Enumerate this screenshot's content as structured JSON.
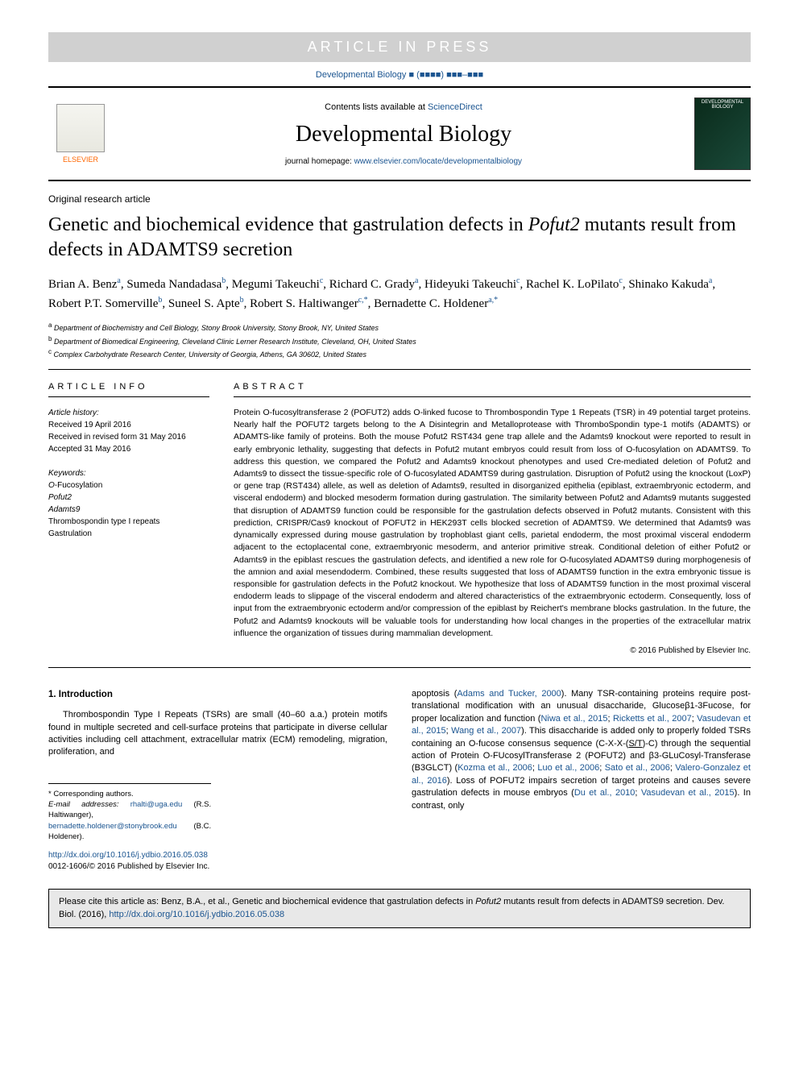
{
  "banner": "ARTICLE IN PRESS",
  "citation_top": {
    "journal": "Developmental Biology",
    "placeholder": "■ (■■■■) ■■■–■■■"
  },
  "header": {
    "contents_prefix": "Contents lists available at ",
    "contents_link": "ScienceDirect",
    "journal_name": "Developmental Biology",
    "homepage_prefix": "journal homepage: ",
    "homepage_url": "www.elsevier.com/locate/developmentalbiology",
    "elsevier_label": "ELSEVIER",
    "cover_label": "DEVELOPMENTAL BIOLOGY"
  },
  "article_type": "Original research article",
  "title_parts": [
    "Genetic and biochemical evidence that gastrulation defects in ",
    "Pofut2",
    " mutants result from defects in ADAMTS9 secretion"
  ],
  "authors": [
    {
      "name": "Brian A. Benz",
      "aff": "a"
    },
    {
      "name": "Sumeda Nandadasa",
      "aff": "b"
    },
    {
      "name": "Megumi Takeuchi",
      "aff": "c"
    },
    {
      "name": "Richard C. Grady",
      "aff": "a"
    },
    {
      "name": "Hideyuki Takeuchi",
      "aff": "c"
    },
    {
      "name": "Rachel K. LoPilato",
      "aff": "c"
    },
    {
      "name": "Shinako Kakuda",
      "aff": "a"
    },
    {
      "name": "Robert P.T. Somerville",
      "aff": "b"
    },
    {
      "name": "Suneel S. Apte",
      "aff": "b"
    },
    {
      "name": "Robert S. Haltiwanger",
      "aff": "c,*"
    },
    {
      "name": "Bernadette C. Holdener",
      "aff": "a,*"
    }
  ],
  "affiliations": [
    {
      "sup": "a",
      "text": "Department of Biochemistry and Cell Biology, Stony Brook University, Stony Brook, NY, United States"
    },
    {
      "sup": "b",
      "text": "Department of Biomedical Engineering, Cleveland Clinic Lerner Research Institute, Cleveland, OH, United States"
    },
    {
      "sup": "c",
      "text": "Complex Carbohydrate Research Center, University of Georgia, Athens, GA 30602, United States"
    }
  ],
  "article_info_heading": "ARTICLE INFO",
  "history": {
    "label": "Article history:",
    "received": "Received 19 April 2016",
    "revised": "Received in revised form 31 May 2016",
    "accepted": "Accepted 31 May 2016"
  },
  "keywords": {
    "label": "Keywords:",
    "items": [
      "O-Fucosylation",
      "Pofut2",
      "Adamts9",
      "Thrombospondin type I repeats",
      "Gastrulation"
    ]
  },
  "abstract_heading": "ABSTRACT",
  "abstract": "Protein O-fucosyltransferase 2 (POFUT2) adds O-linked fucose to Thrombospondin Type 1 Repeats (TSR) in 49 potential target proteins. Nearly half the POFUT2 targets belong to the A Disintegrin and Metalloprotease with ThromboSpondin type-1 motifs (ADAMTS) or ADAMTS-like family of proteins. Both the mouse Pofut2 RST434 gene trap allele and the Adamts9 knockout were reported to result in early embryonic lethality, suggesting that defects in Pofut2 mutant embryos could result from loss of O-fucosylation on ADAMTS9. To address this question, we compared the Pofut2 and Adamts9 knockout phenotypes and used Cre-mediated deletion of Pofut2 and Adamts9 to dissect the tissue-specific role of O-fucosylated ADAMTS9 during gastrulation. Disruption of Pofut2 using the knockout (LoxP) or gene trap (RST434) allele, as well as deletion of Adamts9, resulted in disorganized epithelia (epiblast, extraembryonic ectoderm, and visceral endoderm) and blocked mesoderm formation during gastrulation. The similarity between Pofut2 and Adamts9 mutants suggested that disruption of ADAMTS9 function could be responsible for the gastrulation defects observed in Pofut2 mutants. Consistent with this prediction, CRISPR/Cas9 knockout of POFUT2 in HEK293T cells blocked secretion of ADAMTS9. We determined that Adamts9 was dynamically expressed during mouse gastrulation by trophoblast giant cells, parietal endoderm, the most proximal visceral endoderm adjacent to the ectoplacental cone, extraembryonic mesoderm, and anterior primitive streak. Conditional deletion of either Pofut2 or Adamts9 in the epiblast rescues the gastrulation defects, and identified a new role for O-fucosylated ADAMTS9 during morphogenesis of the amnion and axial mesendoderm. Combined, these results suggested that loss of ADAMTS9 function in the extra embryonic tissue is responsible for gastrulation defects in the Pofut2 knockout. We hypothesize that loss of ADAMTS9 function in the most proximal visceral endoderm leads to slippage of the visceral endoderm and altered characteristics of the extraembryonic ectoderm. Consequently, loss of input from the extraembryonic ectoderm and/or compression of the epiblast by Reichert's membrane blocks gastrulation. In the future, the Pofut2 and Adamts9 knockouts will be valuable tools for understanding how local changes in the properties of the extracellular matrix influence the organization of tissues during mammalian development.",
  "copyright": "© 2016 Published by Elsevier Inc.",
  "intro": {
    "heading": "1.  Introduction",
    "col1": "Thrombospondin Type I Repeats (TSRs) are small (40–60 a.a.) protein motifs found in multiple secreted and cell-surface proteins that participate in diverse cellular activities including cell attachment, extracellular matrix (ECM) remodeling, migration, proliferation, and",
    "col2_a": "apoptosis (",
    "col2_a_link": "Adams and Tucker, 2000",
    "col2_b": "). Many TSR-containing proteins require post-translational modification with an unusual disaccharide, Glucoseβ1-3Fucose, for proper localization and function (",
    "col2_b_links": [
      "Niwa et al., 2015",
      "Ricketts et al., 2007",
      "Vasudevan et al., 2015",
      "Wang et al., 2007"
    ],
    "col2_c": "). This disaccharide is added only to properly folded TSRs containing an O-fucose consensus sequence (C-X-X-(",
    "col2_c_under": "S/T",
    "col2_d": ")-C) through the sequential action of Protein O-FUcosylTransferase 2 (POFUT2) and β3-GLuCosyl-Transferase (B3GLCT) (",
    "col2_d_links": [
      "Kozma et al., 2006",
      "Luo et al., 2006",
      "Sato et al., 2006",
      "Valero-Gonzalez et al., 2016"
    ],
    "col2_e": "). Loss of POFUT2 impairs secretion of target proteins and causes severe gastrulation defects in mouse embryos (",
    "col2_e_links": [
      "Du et al., 2010",
      "Vasudevan et al., 2015"
    ],
    "col2_f": "). In contrast, only"
  },
  "footnotes": {
    "corr": "* Corresponding authors.",
    "email_label": "E-mail addresses:",
    "emails": [
      {
        "addr": "rhalti@uga.edu",
        "who": "(R.S. Haltiwanger)"
      },
      {
        "addr": "bernadette.holdener@stonybrook.edu",
        "who": "(B.C. Holdener)."
      }
    ]
  },
  "doi": {
    "url": "http://dx.doi.org/10.1016/j.ydbio.2016.05.038",
    "issn": "0012-1606/© 2016 Published by Elsevier Inc."
  },
  "cite_box": {
    "prefix": "Please cite this article as: Benz, B.A., et al., Genetic and biochemical evidence that gastrulation defects in ",
    "italic": "Pofut2",
    "mid": " mutants result from defects in ADAMTS9 secretion. Dev. Biol. (2016), ",
    "link": "http://dx.doi.org/10.1016/j.ydbio.2016.05.038"
  },
  "colors": {
    "link": "#1a5490",
    "banner_bg": "#d0d0d0",
    "banner_fg": "#ffffff",
    "elsevier_orange": "#ff6600",
    "citebox_bg": "#e8e8e8"
  }
}
